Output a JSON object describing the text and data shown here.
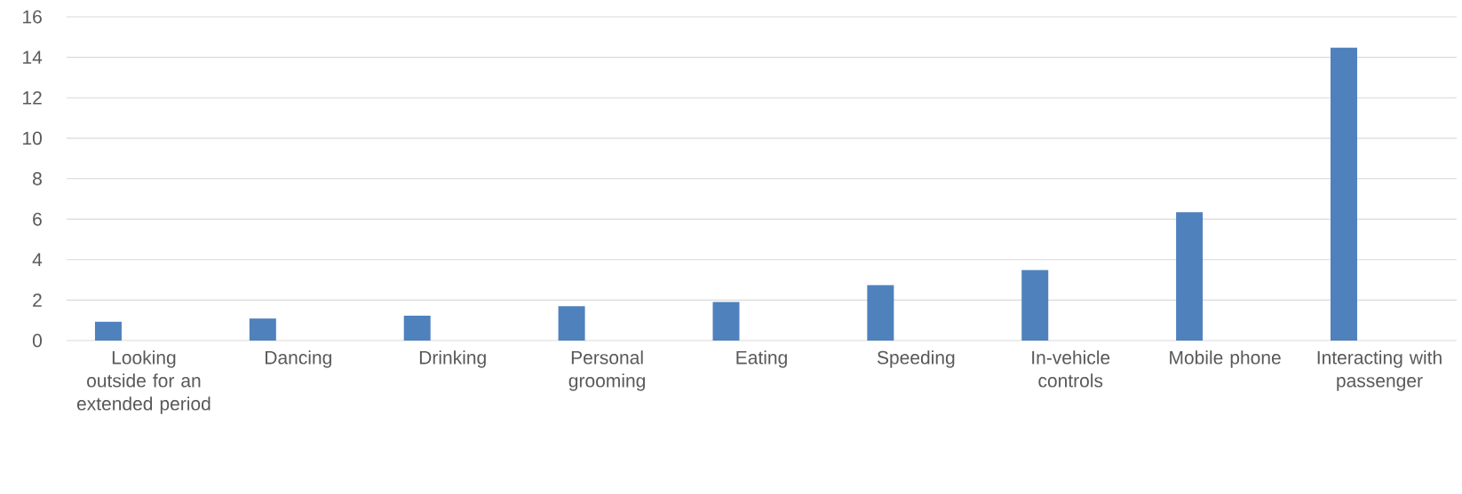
{
  "chart_data": {
    "type": "bar",
    "categories": [
      "Looking outside for an extended period",
      "Dancing",
      "Drinking",
      "Personal grooming",
      "Eating",
      "Speeding",
      "In-vehicle controls",
      "Mobile phone",
      "Interacting with passenger"
    ],
    "values": [
      0.93,
      1.09,
      1.23,
      1.7,
      1.91,
      2.74,
      3.49,
      6.34,
      14.48
    ],
    "color": "#4f81bd",
    "ylim": [
      0,
      16
    ],
    "yticks": [
      0,
      2,
      4,
      6,
      8,
      10,
      12,
      14,
      16
    ],
    "grid": "y"
  }
}
